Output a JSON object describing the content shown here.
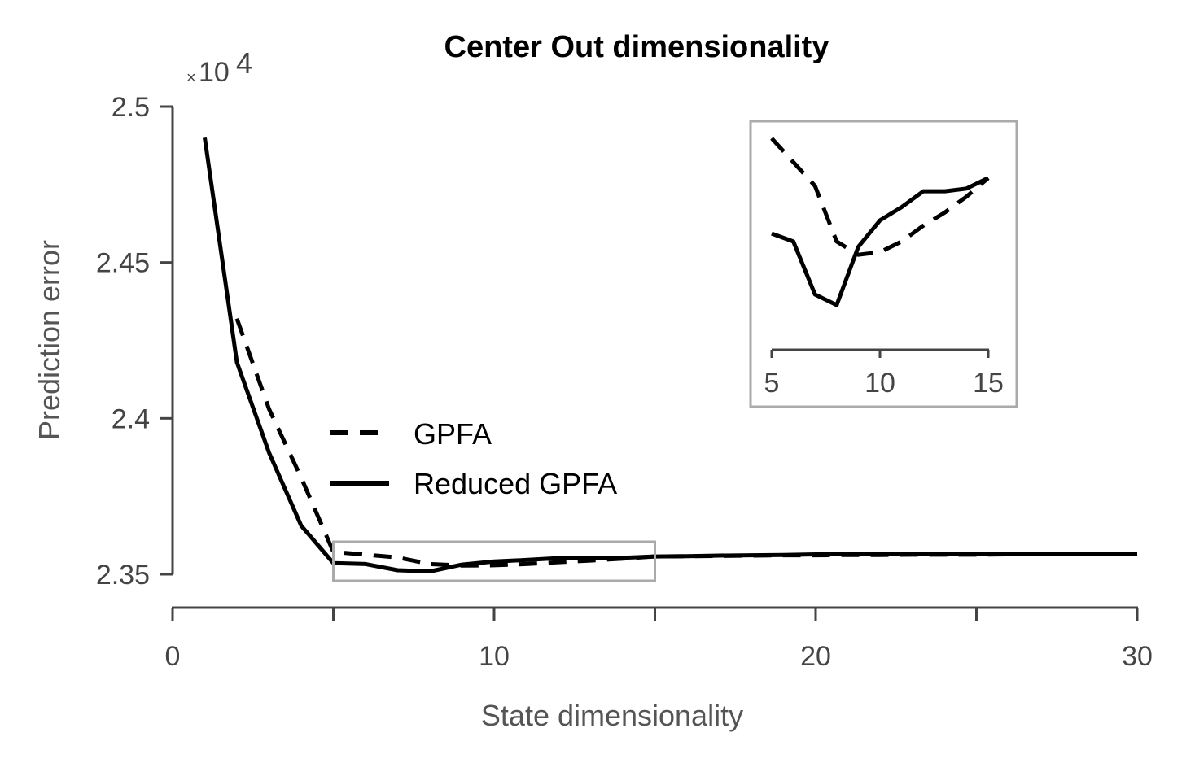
{
  "chart_data": {
    "type": "line",
    "title": "Center Out dimensionality",
    "xlabel": "State dimensionality",
    "ylabel": "Prediction error",
    "y_multiplier": {
      "prefix": "×10",
      "exponent": "4"
    },
    "xlim": [
      0,
      30
    ],
    "ylim": [
      2.35,
      2.5
    ],
    "xticks": [
      "0",
      "10",
      "20",
      "30"
    ],
    "yticks": [
      "2.35",
      "2.4",
      "2.45",
      "2.5"
    ],
    "series": [
      {
        "name": "GPFA",
        "style": "dashed",
        "x": [
          2,
          3,
          4,
          5,
          6,
          7,
          8,
          9,
          10,
          11,
          12,
          13,
          14,
          15,
          16,
          17,
          18,
          19,
          20,
          21,
          22,
          23,
          24,
          25,
          26,
          27,
          28,
          29,
          30
        ],
        "y": [
          2.432,
          2.403,
          2.381,
          2.3572,
          2.3563,
          2.3554,
          2.3533,
          2.3528,
          2.3529,
          2.3533,
          2.3539,
          2.3544,
          2.355,
          2.3557,
          2.3558,
          2.3559,
          2.356,
          2.3561,
          2.3561,
          2.3562,
          2.3562,
          2.3563,
          2.3563,
          2.3563,
          2.3564,
          2.3564,
          2.3564,
          2.3564,
          2.3564
        ]
      },
      {
        "name": "Reduced GPFA",
        "style": "solid",
        "x": [
          1,
          2,
          3,
          4,
          5,
          6,
          7,
          8,
          9,
          10,
          11,
          12,
          13,
          14,
          15,
          16,
          17,
          18,
          19,
          20,
          21,
          22,
          23,
          24,
          25,
          26,
          27,
          28,
          29,
          30
        ],
        "y": [
          2.49,
          2.418,
          2.389,
          2.3656,
          2.3536,
          2.3533,
          2.3513,
          2.3509,
          2.3531,
          2.3541,
          2.3546,
          2.3552,
          2.3552,
          2.3553,
          2.3557,
          2.3558,
          2.356,
          2.3561,
          2.3562,
          2.3564,
          2.3564,
          2.3564,
          2.3564,
          2.3564,
          2.3564,
          2.3564,
          2.3564,
          2.3564,
          2.3564,
          2.3564
        ]
      }
    ],
    "legend": {
      "position": "center-left",
      "entries": [
        "GPFA",
        "Reduced GPFA"
      ]
    },
    "zoom_region": {
      "xlim": [
        5,
        15
      ]
    },
    "inset": {
      "position": "top-right",
      "xlim": [
        5,
        15
      ],
      "xticks": [
        "5",
        "10",
        "15"
      ]
    },
    "grid": false,
    "colors": {
      "lines": "#000000",
      "axes": "#444444",
      "zoom_box": "#aaaaaa"
    }
  }
}
